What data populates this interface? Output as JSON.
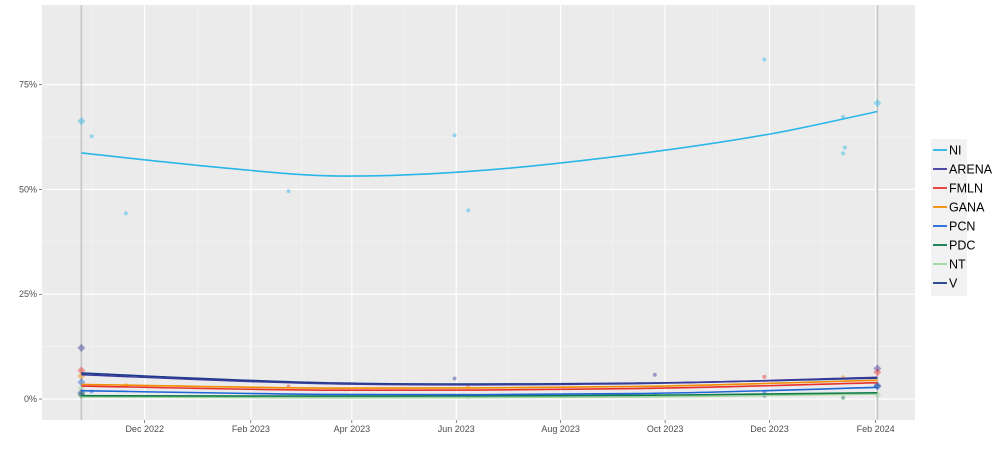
{
  "chart_data": {
    "type": "line",
    "title": "",
    "xlabel": "",
    "ylabel": "",
    "xlim": [
      "2022-10-02",
      "2024-02-24"
    ],
    "ylim": [
      -5,
      94
    ],
    "grid": true,
    "legend_position": "right",
    "x_ticks": [
      {
        "date": "2022-12-01",
        "label": "Dec 2022"
      },
      {
        "date": "2023-02-01",
        "label": "Feb 2023"
      },
      {
        "date": "2023-04-01",
        "label": "Apr 2023"
      },
      {
        "date": "2023-06-01",
        "label": "Jun 2023"
      },
      {
        "date": "2023-08-01",
        "label": "Aug 2023"
      },
      {
        "date": "2023-10-01",
        "label": "Oct 2023"
      },
      {
        "date": "2023-12-01",
        "label": "Dec 2023"
      },
      {
        "date": "2024-02-01",
        "label": "Feb 2024"
      }
    ],
    "y_ticks": [
      {
        "value": 0,
        "label": "0%"
      },
      {
        "value": 25,
        "label": "25%"
      },
      {
        "value": 50,
        "label": "50%"
      },
      {
        "value": 75,
        "label": "75%"
      }
    ],
    "reference_dates": [
      "2022-10-25",
      "2024-02-02"
    ],
    "series": [
      {
        "name": "NI",
        "color": "#29b6e8",
        "trend": [
          [
            "2022-10-25",
            58.7
          ],
          [
            "2023-01-15",
            55.2
          ],
          [
            "2023-03-25",
            53.2
          ],
          [
            "2023-06-15",
            54.5
          ],
          [
            "2023-09-15",
            58.5
          ],
          [
            "2023-12-01",
            63.2
          ],
          [
            "2024-02-02",
            68.6
          ]
        ],
        "points": [
          [
            "2022-10-25",
            66.3
          ],
          [
            "2022-10-31",
            62.7
          ],
          [
            "2022-11-20",
            44.3
          ],
          [
            "2023-02-23",
            49.6
          ],
          [
            "2023-05-31",
            62.9
          ],
          [
            "2023-06-08",
            45.0
          ],
          [
            "2023-11-28",
            81.0
          ],
          [
            "2024-01-13",
            67.3
          ],
          [
            "2024-01-14",
            60.0
          ],
          [
            "2024-01-13",
            58.6
          ],
          [
            "2024-02-02",
            70.6
          ]
        ]
      },
      {
        "name": "ARENA",
        "color": "#3a3a9c",
        "trend": [
          [
            "2022-10-25",
            5.8
          ],
          [
            "2023-03-25",
            3.6
          ],
          [
            "2023-09-15",
            3.7
          ],
          [
            "2024-02-02",
            5.2
          ]
        ],
        "points": [
          [
            "2022-10-25",
            12.2
          ],
          [
            "2023-05-31",
            4.9
          ],
          [
            "2023-09-25",
            5.8
          ],
          [
            "2024-02-02",
            7.3
          ]
        ]
      },
      {
        "name": "FMLN",
        "color": "#e8312f",
        "trend": [
          [
            "2022-10-25",
            3.1
          ],
          [
            "2023-03-25",
            2.1
          ],
          [
            "2023-09-15",
            2.5
          ],
          [
            "2024-02-02",
            3.9
          ]
        ],
        "points": [
          [
            "2022-10-25",
            6.8
          ],
          [
            "2023-02-23",
            3.0
          ],
          [
            "2023-11-28",
            5.3
          ],
          [
            "2024-02-02",
            6.4
          ]
        ]
      },
      {
        "name": "GANA",
        "color": "#f28c00",
        "trend": [
          [
            "2022-10-25",
            3.5
          ],
          [
            "2023-03-25",
            2.6
          ],
          [
            "2023-09-15",
            3.0
          ],
          [
            "2024-02-02",
            4.5
          ]
        ],
        "points": [
          [
            "2022-10-25",
            5.5
          ],
          [
            "2022-11-20",
            3.3
          ],
          [
            "2023-06-08",
            2.8
          ],
          [
            "2024-01-13",
            5.2
          ]
        ]
      },
      {
        "name": "PCN",
        "color": "#1f66d6",
        "trend": [
          [
            "2022-10-25",
            2.0
          ],
          [
            "2023-03-25",
            1.1
          ],
          [
            "2023-09-15",
            1.3
          ],
          [
            "2024-02-02",
            2.8
          ]
        ],
        "points": [
          [
            "2022-10-25",
            4.0
          ],
          [
            "2022-10-31",
            1.8
          ],
          [
            "2023-11-28",
            1.6
          ],
          [
            "2024-02-02",
            3.0
          ]
        ]
      },
      {
        "name": "PDC",
        "color": "#0f7a4a",
        "trend": [
          [
            "2022-10-25",
            0.8
          ],
          [
            "2023-03-25",
            0.7
          ],
          [
            "2023-09-15",
            0.9
          ],
          [
            "2024-02-02",
            1.5
          ]
        ],
        "points": [
          [
            "2022-10-25",
            1.0
          ],
          [
            "2023-09-25",
            1.1
          ],
          [
            "2024-01-13",
            0.3
          ]
        ]
      },
      {
        "name": "NT",
        "color": "#9fd49f",
        "trend": [
          [
            "2022-10-25",
            0.5
          ],
          [
            "2023-03-25",
            0.3
          ],
          [
            "2023-09-15",
            0.5
          ],
          [
            "2024-02-02",
            1.2
          ]
        ],
        "points": [
          [
            "2022-10-25",
            2.5
          ],
          [
            "2023-06-08",
            0.4
          ],
          [
            "2024-02-02",
            1.0
          ]
        ]
      },
      {
        "name": "V",
        "color": "#1a3a8a",
        "trend": [
          [
            "2022-10-25",
            6.2
          ],
          [
            "2023-03-25",
            3.8
          ],
          [
            "2023-09-15",
            3.8
          ],
          [
            "2024-02-02",
            5.0
          ]
        ],
        "points": [
          [
            "2022-10-25",
            1.5
          ],
          [
            "2023-11-28",
            0.8
          ],
          [
            "2024-02-02",
            3.2
          ]
        ]
      }
    ]
  }
}
